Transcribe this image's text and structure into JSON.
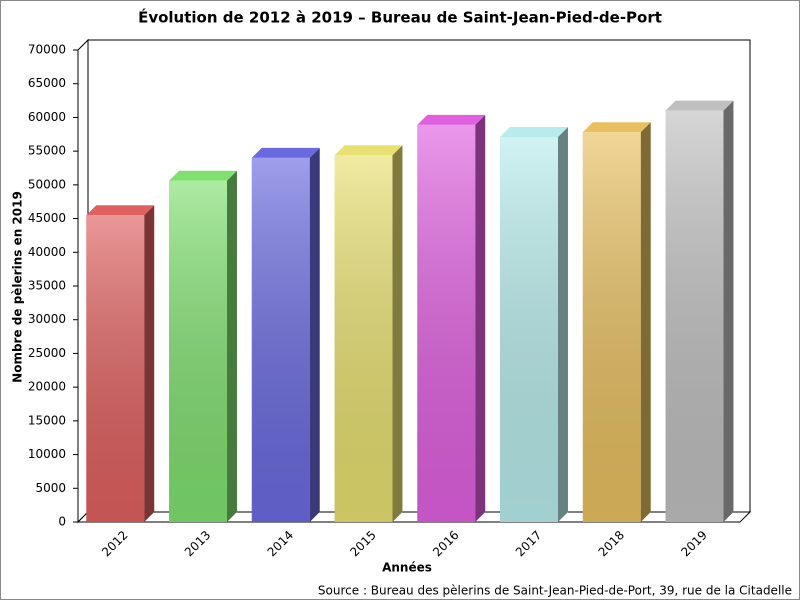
{
  "chart_data": {
    "type": "bar3d",
    "title": "Évolution de 2012 à 2019 – Bureau de Saint-Jean-Pied-de-Port",
    "x_label": "Années",
    "y_label": "Nombre de pèlerins en 2019",
    "source": "Source : Bureau des pèlerins de Saint-Jean-Pied-de-Port, 39, rue de la Citadelle",
    "categories": [
      "2012",
      "2013",
      "2014",
      "2015",
      "2016",
      "2017",
      "2018",
      "2019"
    ],
    "values": [
      45500,
      50600,
      54000,
      54400,
      58900,
      57100,
      57800,
      61000
    ],
    "colors": [
      "#e06060",
      "#80e070",
      "#6a6ae0",
      "#e8e070",
      "#e060e0",
      "#b8ecec",
      "#e8c060",
      "#c0c0c0"
    ],
    "ylim": [
      0,
      70000
    ],
    "yticks": [
      0,
      5000,
      10000,
      15000,
      20000,
      25000,
      30000,
      35000,
      40000,
      45000,
      50000,
      55000,
      60000,
      65000,
      70000
    ]
  }
}
